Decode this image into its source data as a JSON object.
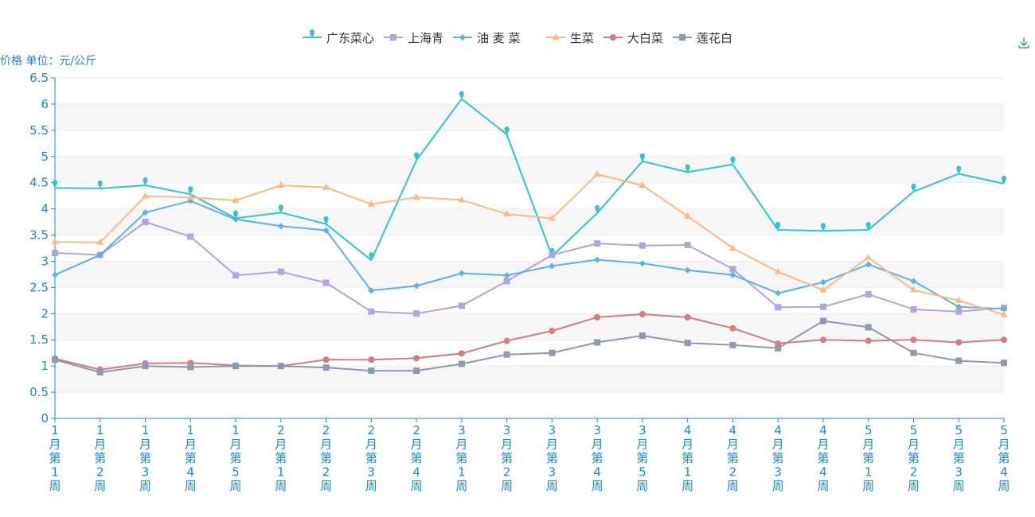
{
  "chart_data": {
    "type": "line",
    "ylabel": "价格 单位：元/公斤",
    "ylim": [
      0,
      6.5
    ],
    "y_ticks": [
      "0",
      "0.5",
      "1",
      "1.5",
      "2",
      "2.5",
      "3",
      "3.5",
      "4",
      "4.5",
      "5",
      "5.5",
      "6",
      "6.5"
    ],
    "categories": [
      "1月第1周",
      "1月第2周",
      "1月第3周",
      "1月第4周",
      "1月第5周",
      "2月第1周",
      "2月第2周",
      "2月第3周",
      "2月第4周",
      "3月第1周",
      "3月第2周",
      "3月第3周",
      "3月第4周",
      "3月第5周",
      "4月第1周",
      "4月第2周",
      "4月第3周",
      "4月第4周",
      "5月第1周",
      "5月第2周",
      "5月第3周",
      "5月第4周"
    ],
    "legend_position": "top",
    "series": [
      {
        "name": "广东菜心",
        "color": "#2ec7c9",
        "marker": "pin",
        "values": [
          4.4,
          4.39,
          4.45,
          4.28,
          3.82,
          3.93,
          3.71,
          3.02,
          4.93,
          6.1,
          5.42,
          3.1,
          3.92,
          4.91,
          4.7,
          4.85,
          3.6,
          3.58,
          3.6,
          4.33,
          4.67,
          4.48
        ]
      },
      {
        "name": "上海青",
        "color": "#b6a2de",
        "marker": "square",
        "values": [
          3.16,
          3.12,
          3.75,
          3.47,
          2.73,
          2.8,
          2.59,
          2.04,
          2.0,
          2.15,
          2.62,
          3.12,
          3.34,
          3.3,
          3.31,
          2.85,
          2.12,
          2.13,
          2.37,
          2.08,
          2.04,
          2.11
        ]
      },
      {
        "name": "油 麦 菜",
        "color": "#5ab1ef",
        "marker": "diamond",
        "values": [
          2.74,
          3.12,
          3.93,
          4.15,
          3.8,
          3.67,
          3.59,
          2.44,
          2.53,
          2.77,
          2.73,
          2.91,
          3.03,
          2.96,
          2.83,
          2.74,
          2.39,
          2.6,
          2.94,
          2.62,
          2.13,
          2.09
        ]
      },
      {
        "name": "生菜",
        "color": "#ffb980",
        "marker": "triangle",
        "values": [
          3.37,
          3.36,
          4.24,
          4.22,
          4.16,
          4.45,
          4.41,
          4.09,
          4.22,
          4.17,
          3.9,
          3.82,
          4.66,
          4.45,
          3.86,
          3.25,
          2.8,
          2.45,
          3.07,
          2.45,
          2.25,
          1.98
        ]
      },
      {
        "name": "大白菜",
        "color": "#d87a80",
        "marker": "circle",
        "values": [
          1.14,
          0.93,
          1.05,
          1.06,
          1.01,
          1.0,
          1.12,
          1.12,
          1.15,
          1.24,
          1.48,
          1.67,
          1.93,
          1.99,
          1.93,
          1.72,
          1.43,
          1.5,
          1.48,
          1.5,
          1.45,
          1.5
        ]
      },
      {
        "name": "莲花白",
        "color": "#8d98b3",
        "marker": "square",
        "values": [
          1.12,
          0.88,
          1.0,
          0.98,
          1.0,
          1.0,
          0.97,
          0.91,
          0.91,
          1.04,
          1.22,
          1.25,
          1.45,
          1.58,
          1.44,
          1.4,
          1.34,
          1.86,
          1.74,
          1.25,
          1.1,
          1.06
        ]
      }
    ]
  },
  "toolbox": {
    "download_icon": "download-icon"
  }
}
